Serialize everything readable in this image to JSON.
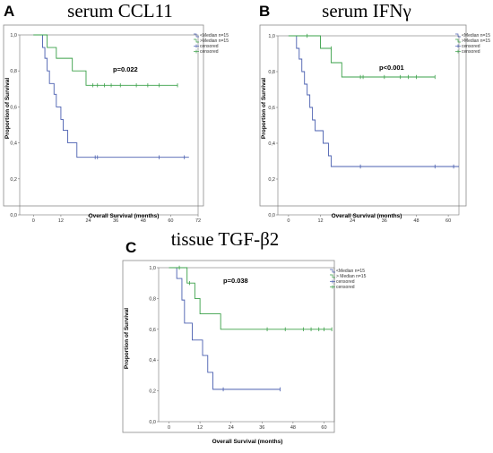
{
  "chart_data": [
    {
      "type": "line",
      "panel": "A",
      "title": "serum CCL11",
      "pvalue": "p=0.022",
      "xlabel": "Overall Survival (months)",
      "ylabel": "Proportion of Survival",
      "xlim": [
        -6,
        72
      ],
      "ylim": [
        0,
        1.0
      ],
      "xticks": [
        0,
        12,
        24,
        36,
        48,
        60,
        72
      ],
      "yticks": [
        0.0,
        0.2,
        0.4,
        0.6,
        0.8,
        1.0
      ],
      "ytick_labels": [
        "0,0",
        "0,2",
        "0,4",
        "0,6",
        "0,8",
        "1,0"
      ],
      "legend": [
        {
          "label": "<Median n=15",
          "color": "#4a5fb0",
          "kind": "line"
        },
        {
          "label": ">Median n=15",
          "color": "#3aa048",
          "kind": "line"
        },
        {
          "label": "censored",
          "color": "#4a5fb0",
          "kind": "censor"
        },
        {
          "label": "censored",
          "color": "#3aa048",
          "kind": "censor"
        }
      ],
      "series": [
        {
          "color": "#4a5fb0",
          "steps": [
            [
              0,
              1.0
            ],
            [
              4,
              0.93
            ],
            [
              5,
              0.87
            ],
            [
              6,
              0.8
            ],
            [
              7,
              0.73
            ],
            [
              9,
              0.67
            ],
            [
              10,
              0.6
            ],
            [
              12,
              0.53
            ],
            [
              13,
              0.47
            ],
            [
              15,
              0.4
            ],
            [
              19,
              0.32
            ],
            [
              68,
              0.32
            ]
          ],
          "censored": [
            [
              27,
              0.32
            ],
            [
              28,
              0.32
            ],
            [
              55,
              0.32
            ],
            [
              66,
              0.32
            ]
          ]
        },
        {
          "color": "#3aa048",
          "steps": [
            [
              0,
              1.0
            ],
            [
              6,
              0.93
            ],
            [
              10,
              0.87
            ],
            [
              17,
              0.8
            ],
            [
              23,
              0.72
            ],
            [
              63,
              0.72
            ]
          ],
          "censored": [
            [
              26,
              0.72
            ],
            [
              28,
              0.72
            ],
            [
              31,
              0.72
            ],
            [
              34,
              0.72
            ],
            [
              38,
              0.72
            ],
            [
              45,
              0.72
            ],
            [
              50,
              0.72
            ],
            [
              55,
              0.72
            ],
            [
              63,
              0.72
            ]
          ]
        }
      ]
    },
    {
      "type": "line",
      "panel": "B",
      "title": "serum IFNγ",
      "pvalue": "p<0.001",
      "xlabel": "Overall Survival (months)",
      "ylabel": "Proportion of Survival",
      "xlim": [
        -4,
        64
      ],
      "ylim": [
        0,
        1.0
      ],
      "xticks": [
        0,
        12,
        24,
        36,
        48,
        60
      ],
      "yticks": [
        0.0,
        0.2,
        0.4,
        0.6,
        0.8,
        1.0
      ],
      "ytick_labels": [
        "0,0",
        "0,2",
        "0,4",
        "0,6",
        "0,8",
        "1,0"
      ],
      "legend": [
        {
          "label": "<Median n=15",
          "color": "#4a5fb0",
          "kind": "line"
        },
        {
          "label": ">Median n=15",
          "color": "#3aa048",
          "kind": "line"
        },
        {
          "label": "censored",
          "color": "#4a5fb0",
          "kind": "censor"
        },
        {
          "label": "censored",
          "color": "#3aa048",
          "kind": "censor"
        }
      ],
      "series": [
        {
          "color": "#4a5fb0",
          "steps": [
            [
              0,
              1.0
            ],
            [
              3,
              0.93
            ],
            [
              4,
              0.87
            ],
            [
              5,
              0.8
            ],
            [
              6,
              0.73
            ],
            [
              7,
              0.67
            ],
            [
              8,
              0.6
            ],
            [
              9,
              0.53
            ],
            [
              10,
              0.47
            ],
            [
              13,
              0.4
            ],
            [
              15,
              0.33
            ],
            [
              16,
              0.27
            ],
            [
              64,
              0.27
            ]
          ],
          "censored": [
            [
              27,
              0.27
            ],
            [
              55,
              0.27
            ],
            [
              62,
              0.27
            ]
          ]
        },
        {
          "color": "#3aa048",
          "steps": [
            [
              0,
              1.0
            ],
            [
              12,
              0.93
            ],
            [
              16,
              0.85
            ],
            [
              20,
              0.77
            ],
            [
              55,
              0.77
            ]
          ],
          "censored": [
            [
              7,
              1.0
            ],
            [
              16,
              0.93
            ],
            [
              27,
              0.77
            ],
            [
              28,
              0.77
            ],
            [
              36,
              0.77
            ],
            [
              42,
              0.77
            ],
            [
              45,
              0.77
            ],
            [
              48,
              0.77
            ],
            [
              55,
              0.77
            ]
          ]
        }
      ]
    },
    {
      "type": "line",
      "panel": "C",
      "title": "tissue TGF-β2",
      "pvalue": "p=0.038",
      "xlabel": "Overall Survival (months)",
      "ylabel": "Proportion of Survival",
      "xlim": [
        -4,
        64
      ],
      "ylim": [
        0,
        1.0
      ],
      "xticks": [
        0,
        12,
        24,
        36,
        48,
        60
      ],
      "yticks": [
        0.0,
        0.2,
        0.4,
        0.6,
        0.8,
        1.0
      ],
      "ytick_labels": [
        "0,0",
        "0,2",
        "0,4",
        "0,6",
        "0,8",
        "1,0"
      ],
      "legend": [
        {
          "label": "<Median n=15",
          "color": "#4a5fb0",
          "kind": "line"
        },
        {
          "label": "> Median n=15",
          "color": "#3aa048",
          "kind": "line"
        },
        {
          "label": "censored",
          "color": "#4a5fb0",
          "kind": "censor"
        },
        {
          "label": "censored",
          "color": "#3aa048",
          "kind": "censor"
        }
      ],
      "series": [
        {
          "color": "#4a5fb0",
          "steps": [
            [
              0,
              1.0
            ],
            [
              3,
              0.93
            ],
            [
              5,
              0.79
            ],
            [
              6,
              0.64
            ],
            [
              9,
              0.53
            ],
            [
              13,
              0.43
            ],
            [
              15,
              0.32
            ],
            [
              17,
              0.21
            ],
            [
              43,
              0.21
            ]
          ],
          "censored": [
            [
              21,
              0.21
            ],
            [
              43,
              0.21
            ]
          ]
        },
        {
          "color": "#3aa048",
          "steps": [
            [
              0,
              1.0
            ],
            [
              7,
              0.9
            ],
            [
              10,
              0.8
            ],
            [
              12,
              0.7
            ],
            [
              20,
              0.6
            ],
            [
              63,
              0.6
            ]
          ],
          "censored": [
            [
              4,
              1.0
            ],
            [
              8,
              0.9
            ],
            [
              38,
              0.6
            ],
            [
              45,
              0.6
            ],
            [
              52,
              0.6
            ],
            [
              55,
              0.6
            ],
            [
              58,
              0.6
            ],
            [
              60,
              0.6
            ],
            [
              63,
              0.6
            ]
          ]
        }
      ]
    }
  ]
}
